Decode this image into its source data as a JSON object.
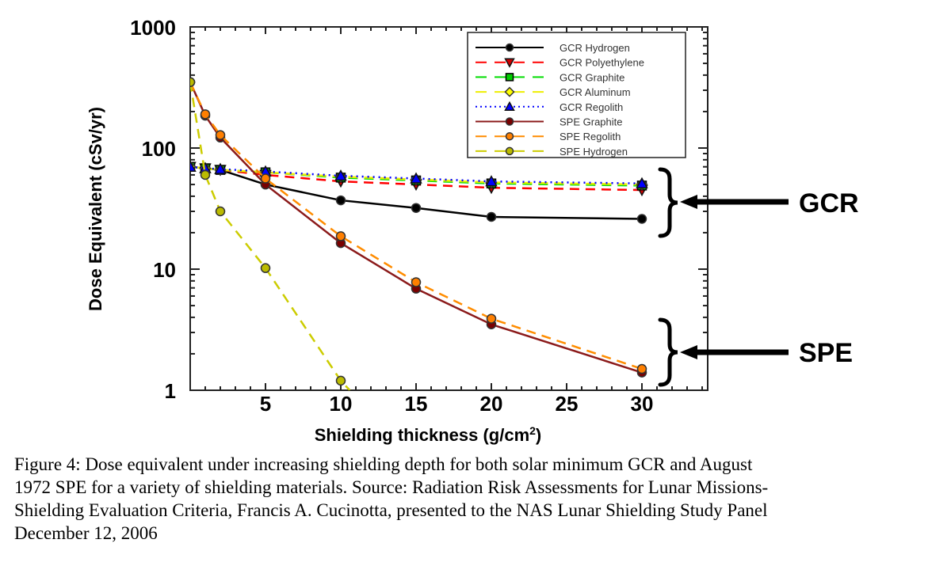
{
  "chart_data": {
    "type": "line",
    "title": "",
    "xlabel": "Shielding thickness (g/cm",
    "xlabel_sup": "2",
    "xlabel_close": ")",
    "ylabel": "Dose Equivalent (cSv/yr)",
    "yscale": "log",
    "xlim": [
      0,
      34
    ],
    "ylim": [
      1,
      1000
    ],
    "x_ticks": [
      5,
      10,
      15,
      20,
      25,
      30
    ],
    "x_tick_labels": [
      "5",
      "10",
      "15",
      "20",
      "25",
      "30"
    ],
    "y_ticks": [
      1,
      10,
      100,
      1000
    ],
    "y_tick_labels": [
      "1",
      "10",
      "100",
      "1000"
    ],
    "grid": false,
    "legend_position": "top-right",
    "series": [
      {
        "name": "GCR Hydrogen",
        "color": "#000000",
        "dash": "solid",
        "marker": "circle",
        "marker_fill": "#000000",
        "x": [
          0,
          1,
          2,
          5,
          10,
          15,
          20,
          30
        ],
        "y": [
          70,
          68,
          66,
          50,
          37,
          32,
          27,
          26
        ]
      },
      {
        "name": "GCR Polyethylene",
        "color": "#ff0000",
        "dash": "dashed",
        "marker": "triangle-down",
        "marker_fill": "#cc0000",
        "x": [
          0,
          1,
          2,
          5,
          10,
          15,
          20,
          30
        ],
        "y": [
          70,
          68,
          66,
          60,
          53,
          50,
          47,
          45
        ]
      },
      {
        "name": "GCR Graphite",
        "color": "#00dd00",
        "dash": "dashed",
        "marker": "square",
        "marker_fill": "#00cc00",
        "x": [
          0,
          1,
          2,
          5,
          10,
          15,
          20,
          30
        ],
        "y": [
          70,
          68,
          66,
          63,
          57,
          54,
          51,
          49
        ]
      },
      {
        "name": "GCR Aluminum",
        "color": "#eeee00",
        "dash": "dashed",
        "marker": "diamond",
        "marker_fill": "#ffff00",
        "x": [
          0,
          1,
          2,
          5,
          10,
          15,
          20,
          30
        ],
        "y": [
          70,
          68,
          66,
          63,
          58,
          55,
          52,
          50
        ]
      },
      {
        "name": "GCR Regolith",
        "color": "#0000ff",
        "dash": "dotted",
        "marker": "triangle-up",
        "marker_fill": "#0000ff",
        "x": [
          0,
          1,
          2,
          5,
          10,
          15,
          20,
          30
        ],
        "y": [
          70,
          68,
          67,
          64,
          59,
          56,
          53,
          51
        ]
      },
      {
        "name": "SPE Graphite",
        "color": "#8b1a1a",
        "dash": "solid",
        "marker": "circle",
        "marker_fill": "#7a0000",
        "x": [
          0,
          1,
          2,
          5,
          10,
          15,
          20,
          30
        ],
        "y": [
          350,
          185,
          122,
          50,
          16.4,
          6.9,
          3.5,
          1.4
        ]
      },
      {
        "name": "SPE Regolith",
        "color": "#ff8c00",
        "dash": "dashed",
        "marker": "circle",
        "marker_fill": "#ff7f00",
        "x": [
          0,
          1,
          2,
          5,
          10,
          15,
          20,
          30
        ],
        "y": [
          350,
          190,
          128,
          56,
          18.7,
          7.8,
          3.9,
          1.5
        ]
      },
      {
        "name": "SPE Hydrogen",
        "color": "#cccc00",
        "dash": "dashed",
        "marker": "circle",
        "marker_fill": "#bbbb00",
        "x": [
          0,
          1,
          2,
          5,
          10,
          10.6
        ],
        "y": [
          350,
          60,
          30,
          10.2,
          1.2,
          1.0
        ]
      }
    ],
    "annotations": [
      {
        "text": "GCR",
        "target": "GCR curves group (brace + arrow)"
      },
      {
        "text": "SPE",
        "target": "SPE curves group (brace + arrow)"
      }
    ]
  },
  "caption": {
    "lines": [
      "Figure 4:  Dose equivalent under increasing shielding depth for both solar minimum GCR and August",
      "1972 SPE for a variety of shielding materials. Source:  Radiation Risk Assessments for Lunar Missions-",
      "Shielding Evaluation Criteria, Francis A. Cucinotta,  presented to the NAS Lunar Shielding Study Panel",
      "December 12, 2006"
    ]
  }
}
